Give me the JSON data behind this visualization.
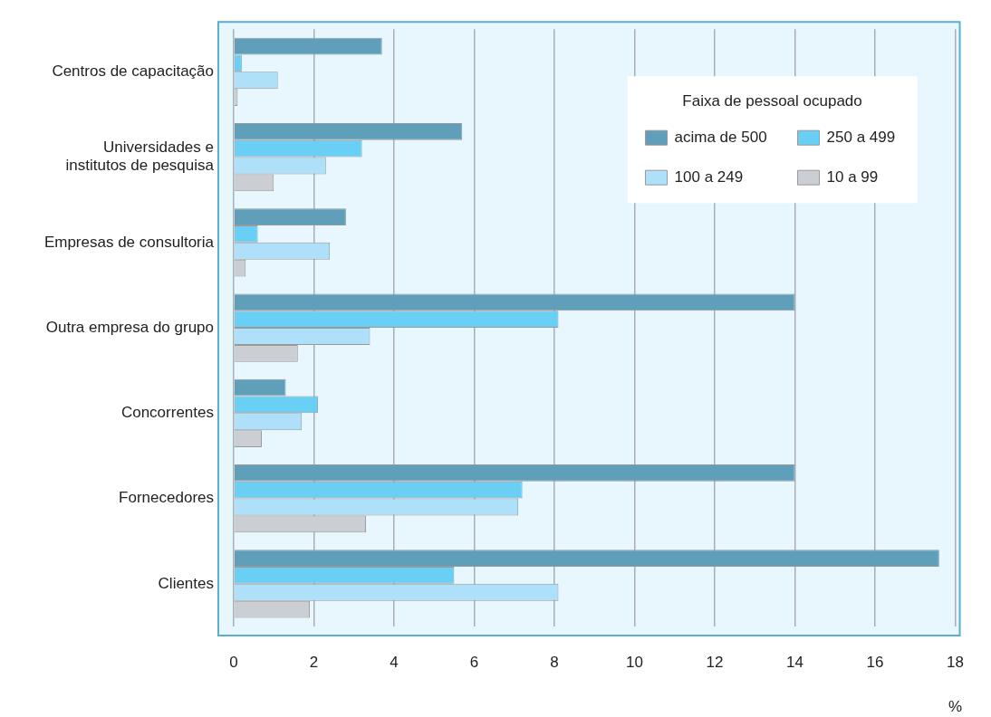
{
  "chart_data": {
    "type": "bar",
    "orientation": "horizontal",
    "xlabel": "%",
    "legend_title": "Faixa de pessoal ocupado",
    "legend": "top right",
    "grid": "x",
    "categories": [
      "Centros de capacitação",
      "Universidades e institutos de pesquisa",
      "Empresas de consultoria",
      "Outra empresa do grupo",
      "Concorrentes",
      "Fornecedores",
      "Clientes"
    ],
    "series": [
      {
        "name": "acima de 500",
        "color": "#5f9fba",
        "values": [
          3.7,
          5.7,
          2.8,
          14.0,
          1.3,
          14.0,
          17.6
        ]
      },
      {
        "name": "250 a 499",
        "color": "#69cff5",
        "values": [
          0.2,
          3.2,
          0.6,
          8.1,
          2.1,
          7.2,
          5.5
        ]
      },
      {
        "name": "100 a 249",
        "color": "#aee1f9",
        "values": [
          1.1,
          2.3,
          2.4,
          3.4,
          1.7,
          7.1,
          8.1
        ]
      },
      {
        "name": "10 a 99",
        "color": "#cbcfd3",
        "values": [
          0.1,
          1.0,
          0.3,
          1.6,
          0.7,
          3.3,
          1.9
        ]
      }
    ],
    "xlim": [
      0,
      18
    ],
    "xticks": [
      0,
      2,
      4,
      6,
      8,
      10,
      12,
      14,
      16,
      18
    ]
  }
}
